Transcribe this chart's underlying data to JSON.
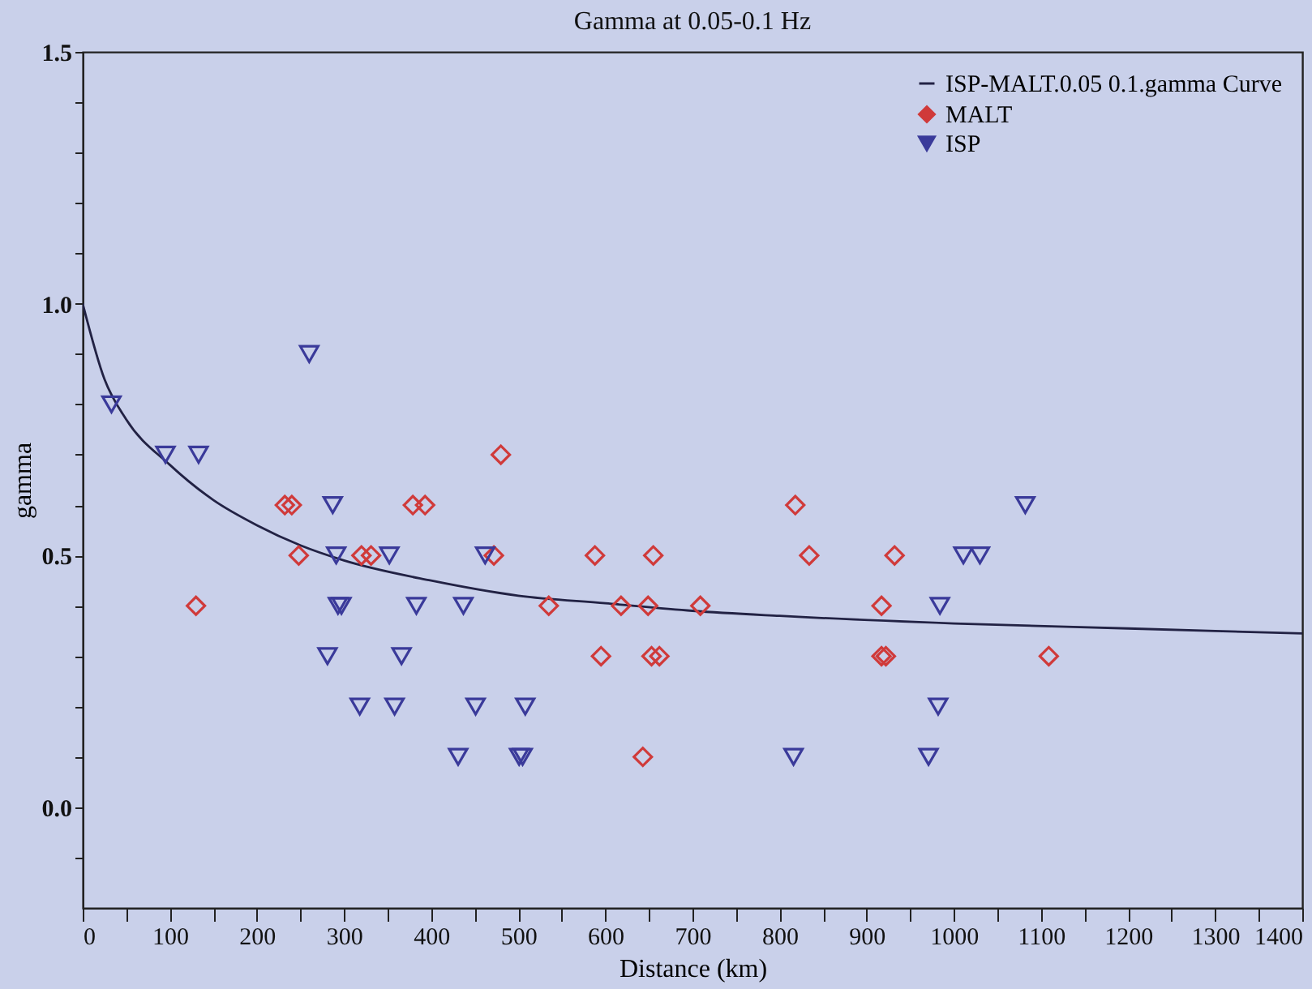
{
  "chart_data": {
    "type": "scatter",
    "title": "Gamma at 0.05-0.1 Hz",
    "xlabel": "Distance (km)",
    "ylabel": "gamma",
    "xlim": [
      0,
      1400
    ],
    "xticks": [
      0,
      {
        "value": 50,
        "label": null
      },
      100,
      {
        "value": 150,
        "label": null
      },
      200,
      {
        "value": 250,
        "label": null
      },
      300,
      {
        "value": 350,
        "label": null
      },
      400,
      {
        "value": 450,
        "label": null
      },
      500,
      {
        "value": 550,
        "label": null
      },
      600,
      {
        "value": 650,
        "label": null
      },
      700,
      {
        "value": 750,
        "label": null
      },
      800,
      {
        "value": 850,
        "label": null
      },
      900,
      {
        "value": 950,
        "label": null
      },
      1000,
      {
        "value": 1050,
        "label": null
      },
      1100,
      {
        "value": 1150,
        "label": null
      },
      1200,
      {
        "value": 1250,
        "label": null
      },
      1300,
      {
        "value": 1350,
        "label": null
      },
      1400
    ],
    "ylim": [
      -0.2,
      1.5
    ],
    "yticks": [
      {
        "value": -0.1,
        "label": null
      },
      {
        "value": 0,
        "label": "0.0"
      },
      {
        "value": 0.1,
        "label": null
      },
      {
        "value": 0.2,
        "label": null
      },
      {
        "value": 0.3,
        "label": null
      },
      {
        "value": 0.4,
        "label": null
      },
      {
        "value": 0.5,
        "label": "0.5"
      },
      {
        "value": 0.6,
        "label": null
      },
      {
        "value": 0.7,
        "label": null
      },
      {
        "value": 0.8,
        "label": null
      },
      {
        "value": 0.9,
        "label": null
      },
      {
        "value": 1.0,
        "label": "1.0"
      },
      {
        "value": 1.1,
        "label": null
      },
      {
        "value": 1.2,
        "label": null
      },
      {
        "value": 1.3,
        "label": null
      },
      {
        "value": 1.4,
        "label": null
      },
      {
        "value": 1.5,
        "label": "1.5"
      }
    ],
    "grid": false,
    "legend": "top right",
    "series": [
      {
        "name": "ISP-MALT.0.05 0.1.gamma Curve",
        "type": "line",
        "color": "#222244",
        "marker": "none",
        "line_style": "solid",
        "x": [
          0,
          25,
          50,
          100,
          150,
          200,
          250,
          300,
          400,
          500,
          600,
          700,
          800,
          1000,
          1200,
          1400
        ],
        "values": [
          1.0,
          0.85,
          0.77,
          0.68,
          0.61,
          0.56,
          0.52,
          0.49,
          0.45,
          0.42,
          0.405,
          0.39,
          0.38,
          0.365,
          0.355,
          0.345
        ]
      },
      {
        "name": "MALT",
        "type": "scatter",
        "color": "#d03a3a",
        "marker": "diamond",
        "x": [
          130,
          232,
          240,
          248,
          320,
          331,
          379,
          393,
          480,
          472,
          535,
          588,
          655,
          618,
          649,
          709,
          595,
          653,
          662,
          643,
          818,
          834,
          932,
          917,
          917,
          922,
          1109
        ],
        "values": [
          0.4,
          0.6,
          0.6,
          0.5,
          0.5,
          0.5,
          0.6,
          0.6,
          0.7,
          0.5,
          0.4,
          0.5,
          0.5,
          0.4,
          0.4,
          0.4,
          0.3,
          0.3,
          0.3,
          0.1,
          0.6,
          0.5,
          0.5,
          0.4,
          0.3,
          0.3,
          0.3
        ]
      },
      {
        "name": "ISP",
        "type": "scatter",
        "color": "#3a3a9a",
        "marker": "triangle",
        "x": [
          33,
          260,
          95,
          133,
          287,
          291,
          352,
          462,
          293,
          297,
          383,
          437,
          281,
          366,
          318,
          358,
          451,
          508,
          431,
          501,
          505,
          1082,
          1011,
          1030,
          984,
          982,
          816,
          971
        ],
        "values": [
          0.8,
          0.9,
          0.7,
          0.7,
          0.6,
          0.5,
          0.5,
          0.5,
          0.4,
          0.4,
          0.4,
          0.4,
          0.3,
          0.3,
          0.2,
          0.2,
          0.2,
          0.2,
          0.1,
          0.1,
          0.1,
          0.6,
          0.5,
          0.5,
          0.4,
          0.2,
          0.1,
          0.1
        ]
      }
    ]
  }
}
